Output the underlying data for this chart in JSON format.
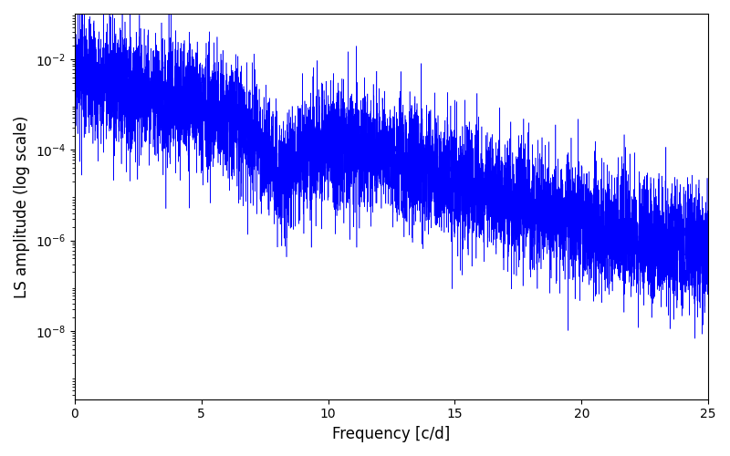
{
  "xlabel": "Frequency [c/d]",
  "ylabel": "LS amplitude (log scale)",
  "line_color": "#0000ff",
  "background_color": "#ffffff",
  "xlim": [
    0,
    25
  ],
  "ylim_log_min": -9.5,
  "ylim_log_max": -1.0,
  "freq_max": 25.0,
  "n_points": 8000,
  "seed": 17,
  "figsize": [
    8.0,
    5.0
  ],
  "dpi": 100
}
